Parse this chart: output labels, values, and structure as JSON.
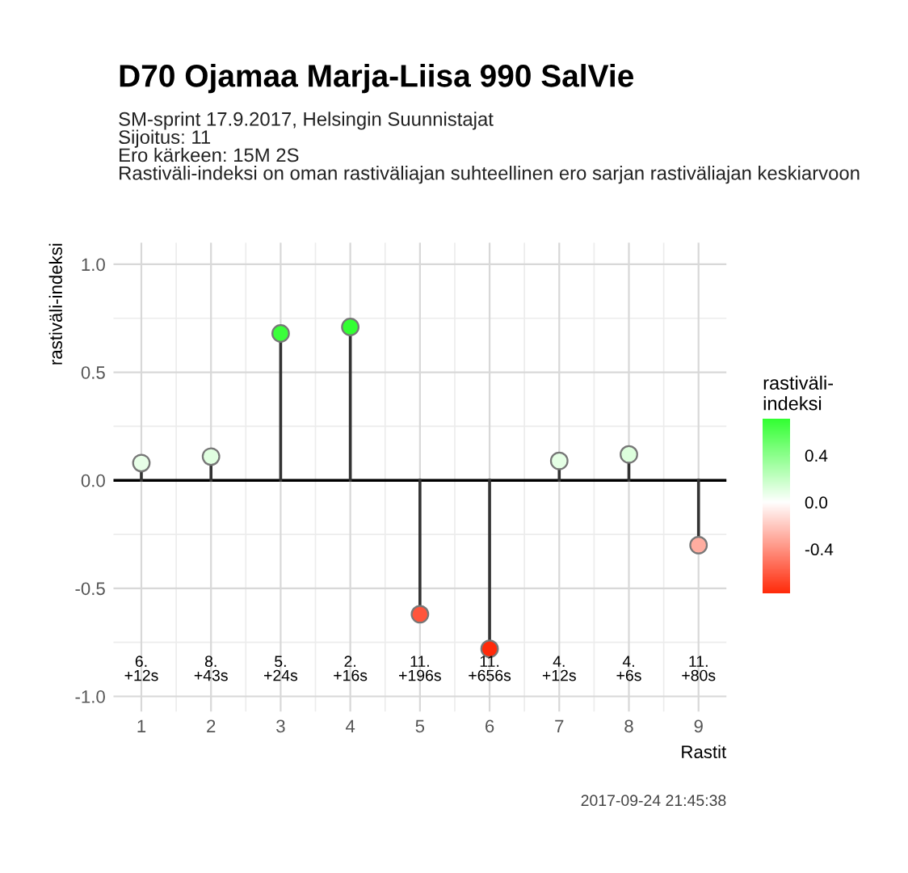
{
  "chart_data": {
    "type": "lollipop",
    "title": "D70 Ojamaa Marja-Liisa 990 SalVie",
    "subtitle": "SM-sprint 17.9.2017, Helsingin Suunnistajat\nSijoitus: 11\nEro kärkeen: 15M 2S\nRastiväli-indeksi on oman rastiväliajan suhteellinen ero sarjan rastiväliajan keskiarvoon",
    "xlabel": "Rastit",
    "ylabel": "rastiväli-indeksi",
    "clabel": "rastiväli-\nindeksi",
    "categories": [
      "1",
      "2",
      "3",
      "4",
      "5",
      "6",
      "7",
      "8",
      "9"
    ],
    "values": [
      0.08,
      0.11,
      0.68,
      0.71,
      -0.62,
      -0.78,
      0.09,
      0.12,
      -0.3
    ],
    "cvalues": [
      0.08,
      0.11,
      0.68,
      0.71,
      -0.62,
      -0.78,
      0.09,
      0.12,
      -0.3
    ],
    "clim": [
      -0.78,
      0.71
    ],
    "cticks": [
      {
        "value": -0.4,
        "label": "-0.4"
      },
      {
        "value": 0.0,
        "label": "0.0"
      },
      0.4
    ],
    "ylim": [
      -1.07,
      1.1
    ],
    "yticks": [
      {
        "value": -1.0,
        "label": "-1.0"
      },
      {
        "value": -0.5,
        "label": "-0.5"
      },
      {
        "value": 0.0,
        "label": "0.0"
      },
      0.5,
      {
        "value": 1.0,
        "label": "1.0"
      }
    ],
    "grid": true,
    "marker": "circle",
    "annotations": [
      "6.\n+12s",
      "8.\n+43s",
      "5.\n+24s",
      "2.\n+16s",
      "11.\n+196s",
      "11.\n+656s",
      "4.\n+12s",
      "4.\n+6s",
      "11.\n+80s",
      "2017-09-24 21:45:38"
    ]
  }
}
